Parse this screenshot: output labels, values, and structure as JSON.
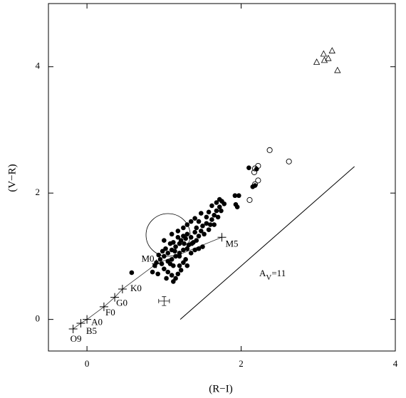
{
  "chart_data": {
    "type": "scatter",
    "x_label": "(R−I)",
    "y_label": "(V−R)",
    "xlim": [
      -0.5,
      4
    ],
    "ylim": [
      -0.5,
      5
    ],
    "xticks": [
      0,
      2,
      4
    ],
    "yticks": [
      0,
      2,
      4
    ],
    "series": [
      {
        "marker": "filled-circle",
        "x": [
          2.1,
          2.2,
          1.92,
          1.97,
          1.93,
          1.95,
          2.15,
          2.18,
          1.75,
          1.78,
          1.72,
          1.74,
          1.68,
          1.65,
          1.62,
          1.7,
          1.6,
          1.65,
          1.55,
          1.5,
          1.58,
          1.48,
          1.52,
          1.45,
          1.4,
          1.42,
          1.38,
          1.35,
          1.3,
          1.32,
          1.28,
          1.25,
          1.22,
          1.2,
          1.18,
          1.15,
          1.12,
          1.1,
          1.08,
          1.05,
          1.02,
          1.0,
          0.98,
          0.95,
          0.93,
          0.9,
          0.88,
          1.05,
          1.1,
          1.15,
          1.2,
          1.25,
          1.3,
          1.35,
          1.4,
          1.45,
          1.5,
          1.0,
          1.05,
          1.1,
          1.15,
          1.18,
          1.2,
          1.25,
          1.28,
          1.22,
          1.3,
          1.12,
          1.08,
          0.97,
          1.03,
          1.12,
          0.58,
          0.85,
          0.92,
          1.0,
          1.1,
          1.18,
          1.25,
          1.3,
          1.35,
          1.4,
          1.45,
          1.55,
          1.48,
          1.62,
          1.58,
          1.68,
          1.72,
          1.2,
          1.14,
          1.36,
          1.42,
          1.26
        ],
        "y": [
          2.4,
          2.38,
          1.96,
          1.96,
          1.82,
          1.78,
          2.1,
          2.12,
          1.87,
          1.83,
          1.78,
          1.72,
          1.72,
          1.65,
          1.58,
          1.62,
          1.5,
          1.5,
          1.52,
          1.48,
          1.42,
          1.4,
          1.35,
          1.32,
          1.38,
          1.25,
          1.22,
          1.3,
          1.35,
          1.18,
          1.28,
          1.32,
          1.25,
          1.2,
          1.3,
          1.15,
          1.22,
          1.1,
          1.2,
          1.05,
          1.12,
          1.0,
          1.08,
          0.95,
          1.02,
          0.9,
          0.85,
          0.92,
          0.95,
          1.0,
          1.05,
          1.1,
          1.12,
          1.05,
          1.1,
          1.12,
          1.15,
          0.8,
          0.75,
          0.7,
          0.65,
          0.72,
          0.85,
          0.9,
          0.95,
          0.78,
          0.85,
          0.85,
          0.88,
          0.88,
          0.65,
          0.6,
          0.74,
          0.75,
          0.72,
          1.25,
          1.35,
          1.4,
          1.45,
          1.5,
          1.55,
          1.6,
          1.55,
          1.62,
          1.68,
          1.8,
          1.7,
          1.85,
          1.9,
          1.0,
          1.08,
          1.2,
          1.45,
          1.2
        ]
      },
      {
        "marker": "open-circle",
        "x": [
          2.37,
          2.62,
          2.22,
          2.18,
          2.17,
          2.22,
          2.18,
          2.11
        ],
        "y": [
          2.68,
          2.5,
          2.43,
          2.39,
          2.33,
          2.2,
          2.14,
          1.89
        ]
      },
      {
        "marker": "open-triangle",
        "x": [
          2.98,
          3.07,
          3.18,
          3.13,
          3.25,
          3.08
        ],
        "y": [
          4.07,
          4.2,
          4.25,
          4.13,
          3.94,
          4.1
        ]
      }
    ],
    "dwarf_sequence": {
      "labels": [
        "O9",
        "B5",
        "A0",
        "F0",
        "G0",
        "K0",
        "M0",
        "M5"
      ],
      "x": [
        -0.18,
        -0.08,
        0.0,
        0.22,
        0.36,
        0.46,
        0.9,
        1.75
      ],
      "y": [
        -0.15,
        -0.06,
        0.0,
        0.2,
        0.35,
        0.48,
        0.88,
        1.3
      ]
    },
    "error_bar": {
      "x": 1.0,
      "y": 0.29,
      "xerr": 0.07,
      "yerr": 0.07
    },
    "reddening_vector": {
      "x": [
        1.21,
        3.47
      ],
      "y": [
        0,
        2.42
      ],
      "label": {
        "base": "A",
        "sub": "V",
        "rest": "=11"
      }
    }
  }
}
